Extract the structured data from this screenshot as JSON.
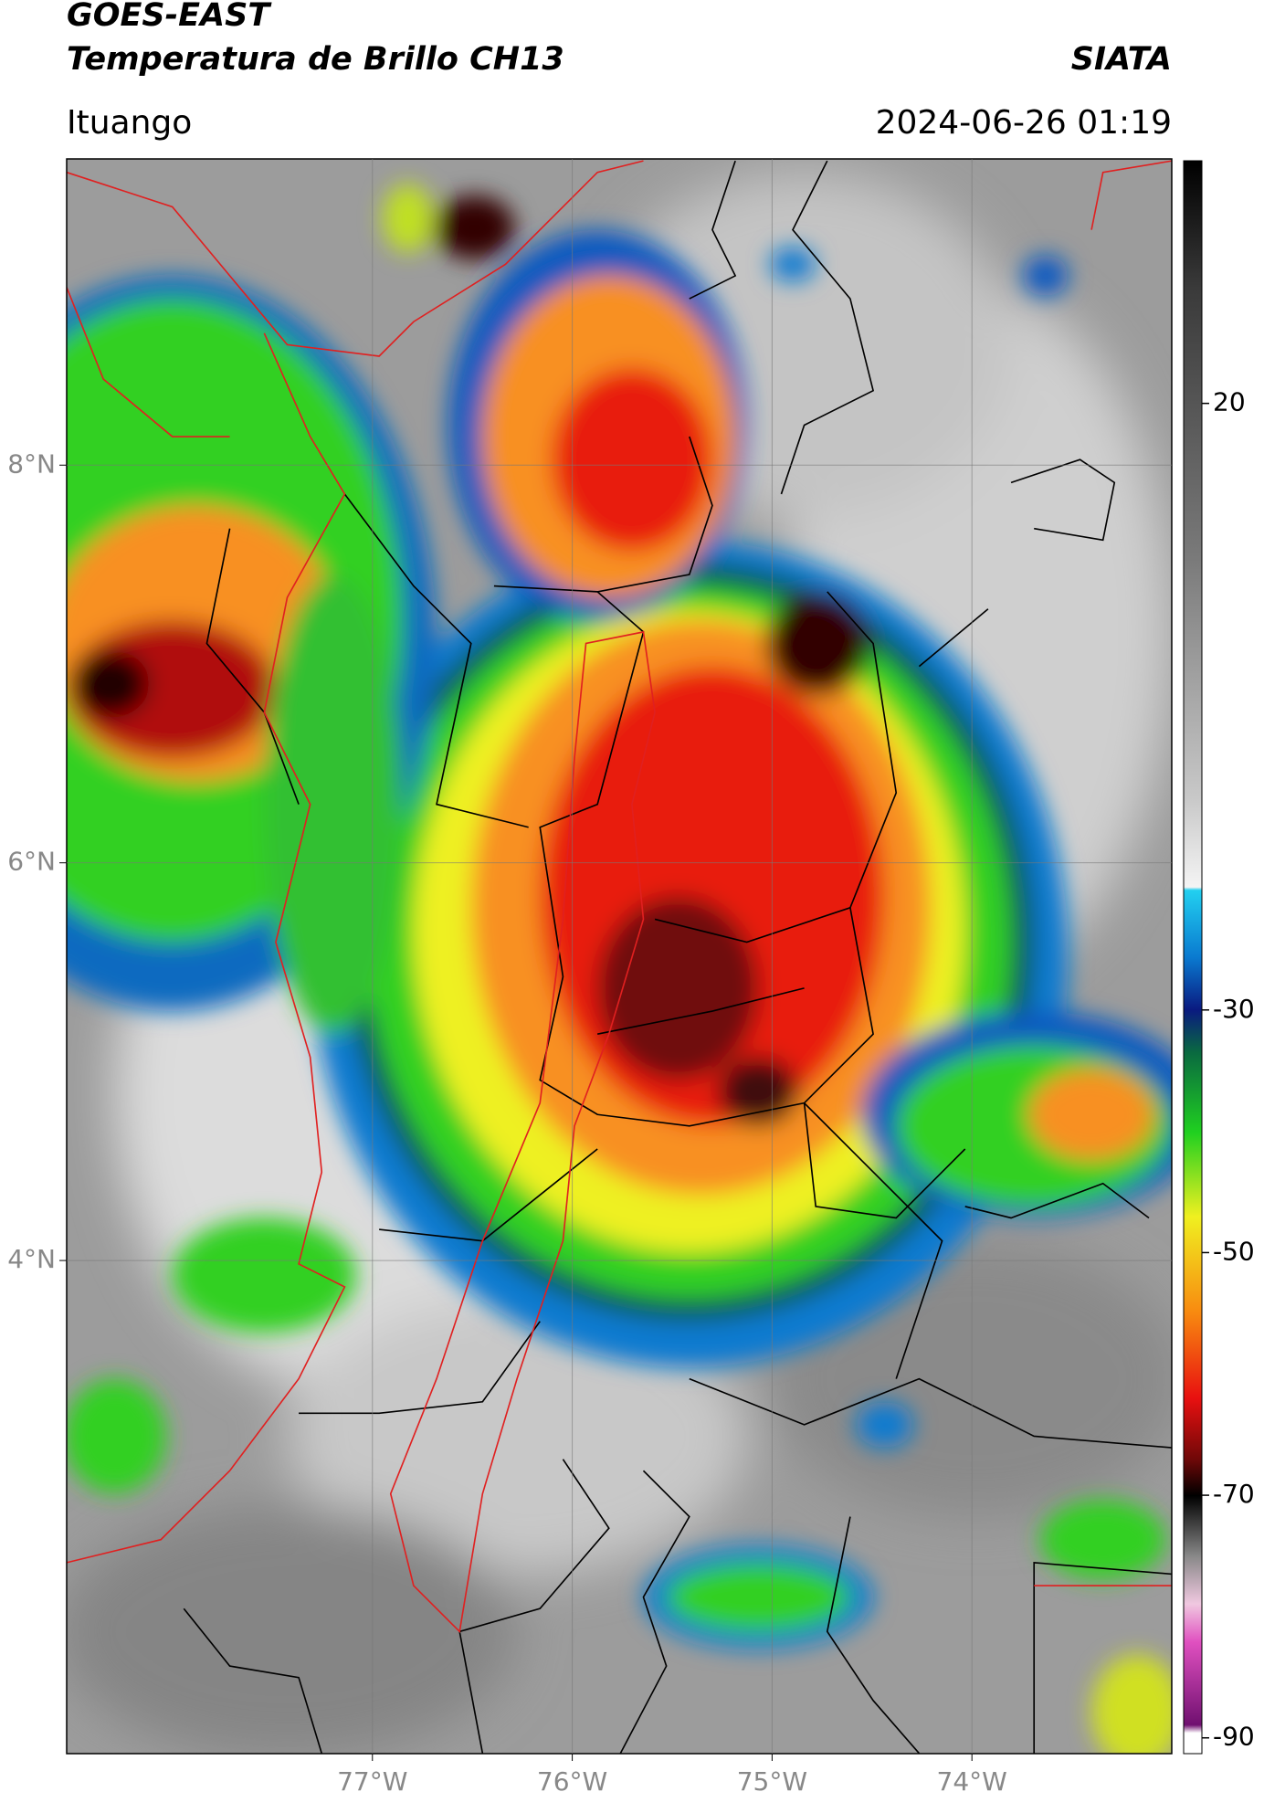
{
  "header": {
    "title_line1": "GOES-EAST",
    "title_line2": "Temperatura de Brillo CH13",
    "source": "SIATA",
    "location": "Ituango",
    "datetime": "2024-06-26 01:19"
  },
  "map": {
    "xlim": [
      -78.53,
      -73.0
    ],
    "ylim": [
      1.52,
      9.54
    ],
    "grid": true,
    "xticks": [
      {
        "value": -77,
        "label": "77°W"
      },
      {
        "value": -76,
        "label": "76°W"
      },
      {
        "value": -75,
        "label": "75°W"
      },
      {
        "value": -74,
        "label": "74°W"
      }
    ],
    "yticks": [
      {
        "value": 4,
        "label": "4°N"
      },
      {
        "value": 6,
        "label": "6°N"
      },
      {
        "value": 8,
        "label": "8°N"
      }
    ]
  },
  "colorbar": {
    "lim": [
      -91.3,
      40
    ],
    "ticks": [
      20,
      -30,
      -50,
      -70,
      -90
    ]
  }
}
